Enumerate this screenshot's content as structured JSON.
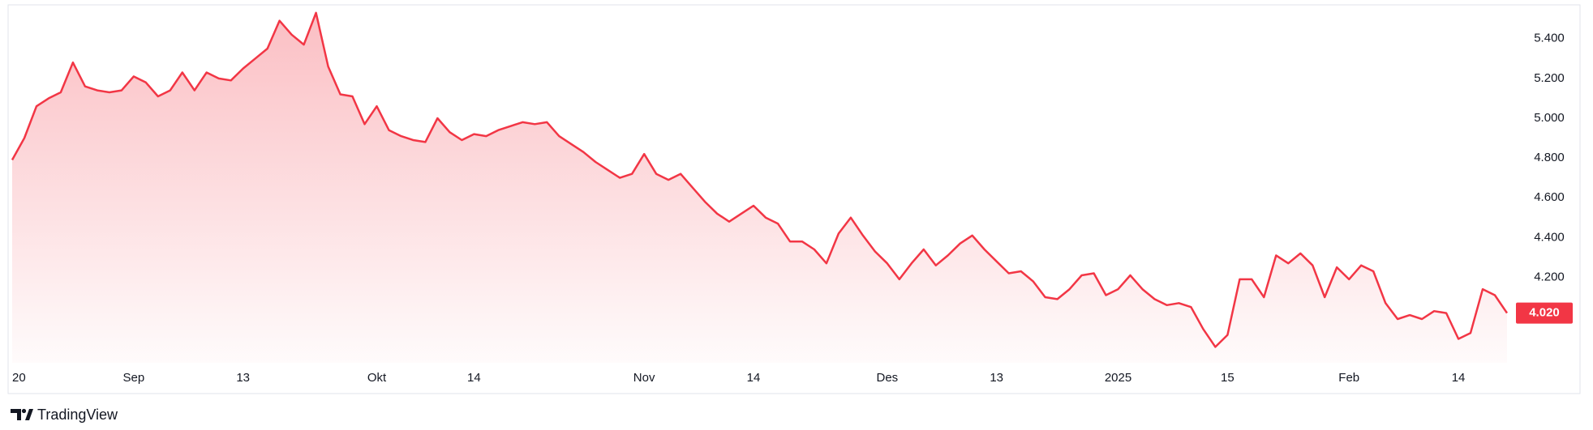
{
  "chart_data": {
    "type": "area",
    "categories": [
      "20",
      null,
      null,
      null,
      null,
      null,
      null,
      null,
      null,
      null,
      "Sep",
      null,
      null,
      null,
      null,
      null,
      null,
      null,
      null,
      "13",
      null,
      null,
      null,
      null,
      null,
      null,
      null,
      null,
      null,
      null,
      "Okt",
      null,
      null,
      null,
      null,
      null,
      null,
      null,
      "14",
      null,
      null,
      null,
      null,
      null,
      null,
      null,
      null,
      null,
      null,
      null,
      null,
      null,
      "Nov",
      null,
      null,
      null,
      null,
      null,
      null,
      null,
      null,
      "14",
      null,
      null,
      null,
      null,
      null,
      null,
      null,
      null,
      null,
      null,
      "Des",
      null,
      null,
      null,
      null,
      null,
      null,
      null,
      null,
      "13",
      null,
      null,
      null,
      null,
      null,
      null,
      null,
      null,
      null,
      "2025",
      null,
      null,
      null,
      null,
      null,
      null,
      null,
      null,
      "15",
      null,
      null,
      null,
      null,
      null,
      null,
      null,
      null,
      null,
      "Feb",
      null,
      null,
      null,
      null,
      null,
      null,
      null,
      null,
      "14",
      null,
      null,
      null,
      null
    ],
    "values": [
      4.79,
      4.9,
      5.06,
      5.1,
      5.13,
      5.28,
      5.16,
      5.14,
      5.13,
      5.14,
      5.21,
      5.18,
      5.11,
      5.14,
      5.23,
      5.14,
      5.23,
      5.2,
      5.19,
      5.25,
      5.3,
      5.35,
      5.49,
      5.42,
      5.37,
      5.53,
      5.26,
      5.12,
      5.11,
      4.97,
      5.06,
      4.94,
      4.91,
      4.89,
      4.88,
      5.0,
      4.93,
      4.89,
      4.92,
      4.91,
      4.94,
      4.96,
      4.98,
      4.97,
      4.98,
      4.91,
      4.87,
      4.83,
      4.78,
      4.74,
      4.7,
      4.72,
      4.82,
      4.72,
      4.69,
      4.72,
      4.65,
      4.58,
      4.52,
      4.48,
      4.52,
      4.56,
      4.5,
      4.47,
      4.38,
      4.38,
      4.34,
      4.27,
      4.42,
      4.5,
      4.41,
      4.33,
      4.27,
      4.19,
      4.27,
      4.34,
      4.26,
      4.31,
      4.37,
      4.41,
      4.34,
      4.28,
      4.22,
      4.23,
      4.18,
      4.1,
      4.09,
      4.14,
      4.21,
      4.22,
      4.11,
      4.14,
      4.21,
      4.14,
      4.09,
      4.06,
      4.07,
      4.05,
      3.94,
      3.85,
      3.91,
      4.19,
      4.19,
      4.1,
      4.31,
      4.27,
      4.32,
      4.26,
      4.1,
      4.25,
      4.19,
      4.26,
      4.23,
      4.07,
      3.99,
      4.01,
      3.99,
      4.03,
      4.02,
      3.89,
      3.92,
      4.14,
      4.11,
      4.02
    ],
    "color": "#f23645",
    "ylim": [
      3.77,
      5.57
    ],
    "yticks": [
      {
        "value": 4.2,
        "label": "4.200"
      },
      {
        "value": 4.4,
        "label": "4.400"
      },
      {
        "value": 4.6,
        "label": "4.600"
      },
      {
        "value": 4.8,
        "label": "4.800"
      },
      {
        "value": 5.0,
        "label": "5.000"
      },
      {
        "value": 5.2,
        "label": "5.200"
      },
      {
        "value": 5.4,
        "label": "5.400"
      }
    ],
    "last_price": {
      "value": 4.02,
      "label": "4.020"
    },
    "grid": false
  },
  "branding": "TradingView"
}
